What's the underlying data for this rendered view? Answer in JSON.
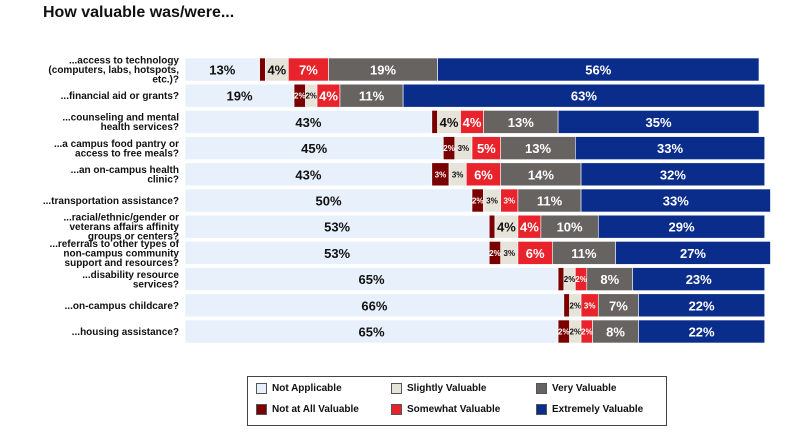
{
  "chart_data": {
    "type": "bar",
    "orientation": "horizontal",
    "stacked": true,
    "title": "How valuable was/were...",
    "xlabel": "",
    "ylabel": "",
    "xlim": [
      0,
      100
    ],
    "legend_position": "bottom",
    "categories": [
      [
        "...access to technology",
        "(computers, labs, hotspots,",
        "etc.)?"
      ],
      [
        "...financial aid or grants?"
      ],
      [
        "...counseling and mental",
        "health services?"
      ],
      [
        "...a campus food pantry or",
        "access to free meals?"
      ],
      [
        "...an on-campus health",
        "clinic?"
      ],
      [
        "...transportation assistance?"
      ],
      [
        "...racial/ethnic/gender or",
        "veterans affairs affinity",
        "groups or centers?"
      ],
      [
        "...referrals to other types of",
        "non-campus community",
        "support and resources?"
      ],
      [
        "...disability resource",
        "services?"
      ],
      [
        "...on-campus childcare?"
      ],
      [
        "...housing assistance?"
      ]
    ],
    "series": [
      {
        "name": "Not Applicable",
        "color": "#e8f0fb",
        "text_color": "#111111",
        "values": [
          13,
          19,
          43,
          45,
          43,
          50,
          53,
          53,
          65,
          66,
          65
        ],
        "labels": [
          "13%",
          "19%",
          "43%",
          "45%",
          "43%",
          "50%",
          "53%",
          "53%",
          "65%",
          "66%",
          "65%"
        ]
      },
      {
        "name": "Not at All Valuable",
        "color": "#7a0000",
        "text_color": "#ffffff",
        "values": [
          1,
          2,
          1,
          2,
          3,
          2,
          1,
          2,
          1,
          1,
          2
        ],
        "labels": [
          "",
          "2%",
          "",
          "2%",
          "3%",
          "2%",
          "",
          "2%",
          "",
          "",
          "2%"
        ]
      },
      {
        "name": "Slightly Valuable",
        "color": "#e6e3d8",
        "text_color": "#111111",
        "values": [
          4,
          2,
          4,
          3,
          3,
          3,
          4,
          3,
          2,
          2,
          2
        ],
        "labels": [
          "4%",
          "2%",
          "4%",
          "3%",
          "3%",
          "3%",
          "4%",
          "3%",
          "2%",
          "2%",
          "2%"
        ]
      },
      {
        "name": "Somewhat Valuable",
        "color": "#e8232b",
        "text_color": "#ffffff",
        "values": [
          7,
          4,
          4,
          5,
          6,
          3,
          4,
          6,
          2,
          3,
          2
        ],
        "labels": [
          "7%",
          "4%",
          "4%",
          "5%",
          "6%",
          "3%",
          "4%",
          "6%",
          "2%",
          "3%",
          "2%"
        ]
      },
      {
        "name": "Very Valuable",
        "color": "#666361",
        "text_color": "#ffffff",
        "values": [
          19,
          11,
          13,
          13,
          14,
          11,
          10,
          11,
          8,
          7,
          8
        ],
        "labels": [
          "19%",
          "11%",
          "13%",
          "13%",
          "14%",
          "11%",
          "10%",
          "11%",
          "8%",
          "7%",
          "8%"
        ]
      },
      {
        "name": "Extremely Valuable",
        "color": "#0a2d8c",
        "text_color": "#ffffff",
        "values": [
          56,
          63,
          35,
          33,
          32,
          33,
          29,
          27,
          23,
          22,
          22
        ],
        "labels": [
          "56%",
          "63%",
          "35%",
          "33%",
          "32%",
          "33%",
          "29%",
          "27%",
          "23%",
          "22%",
          "22%"
        ]
      }
    ],
    "legend_order": [
      0,
      2,
      4,
      1,
      3,
      5
    ]
  }
}
